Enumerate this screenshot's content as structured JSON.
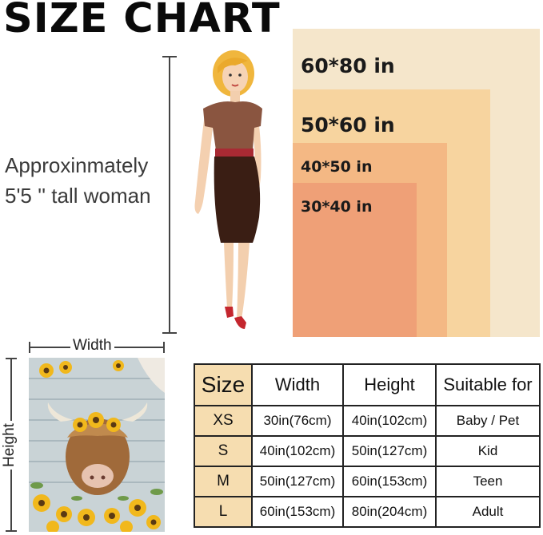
{
  "title": "SIZE CHART",
  "model_caption": {
    "line1": "Approxinmately",
    "line2": "5'5 '' tall woman"
  },
  "sizes_visual": [
    {
      "label": "60*80 in",
      "color": "#f5e6cb"
    },
    {
      "label": "50*60 in",
      "color": "#f7d49f"
    },
    {
      "label": "40*50 in",
      "color": "#f4b884"
    },
    {
      "label": "30*40 in",
      "color": "#efa077"
    }
  ],
  "dimension_labels": {
    "width": "Width",
    "height": "Height"
  },
  "table": {
    "headers": [
      "Size",
      "Width",
      "Height",
      "Suitable for"
    ],
    "rows": [
      [
        "XS",
        "30in(76cm)",
        "40in(102cm)",
        "Baby / Pet"
      ],
      [
        "S",
        "40in(102cm)",
        "50in(127cm)",
        "Kid"
      ],
      [
        "M",
        "50in(127cm)",
        "60in(153cm)",
        "Teen"
      ],
      [
        "L",
        "60in(153cm)",
        "80in(204cm)",
        "Adult"
      ]
    ]
  }
}
